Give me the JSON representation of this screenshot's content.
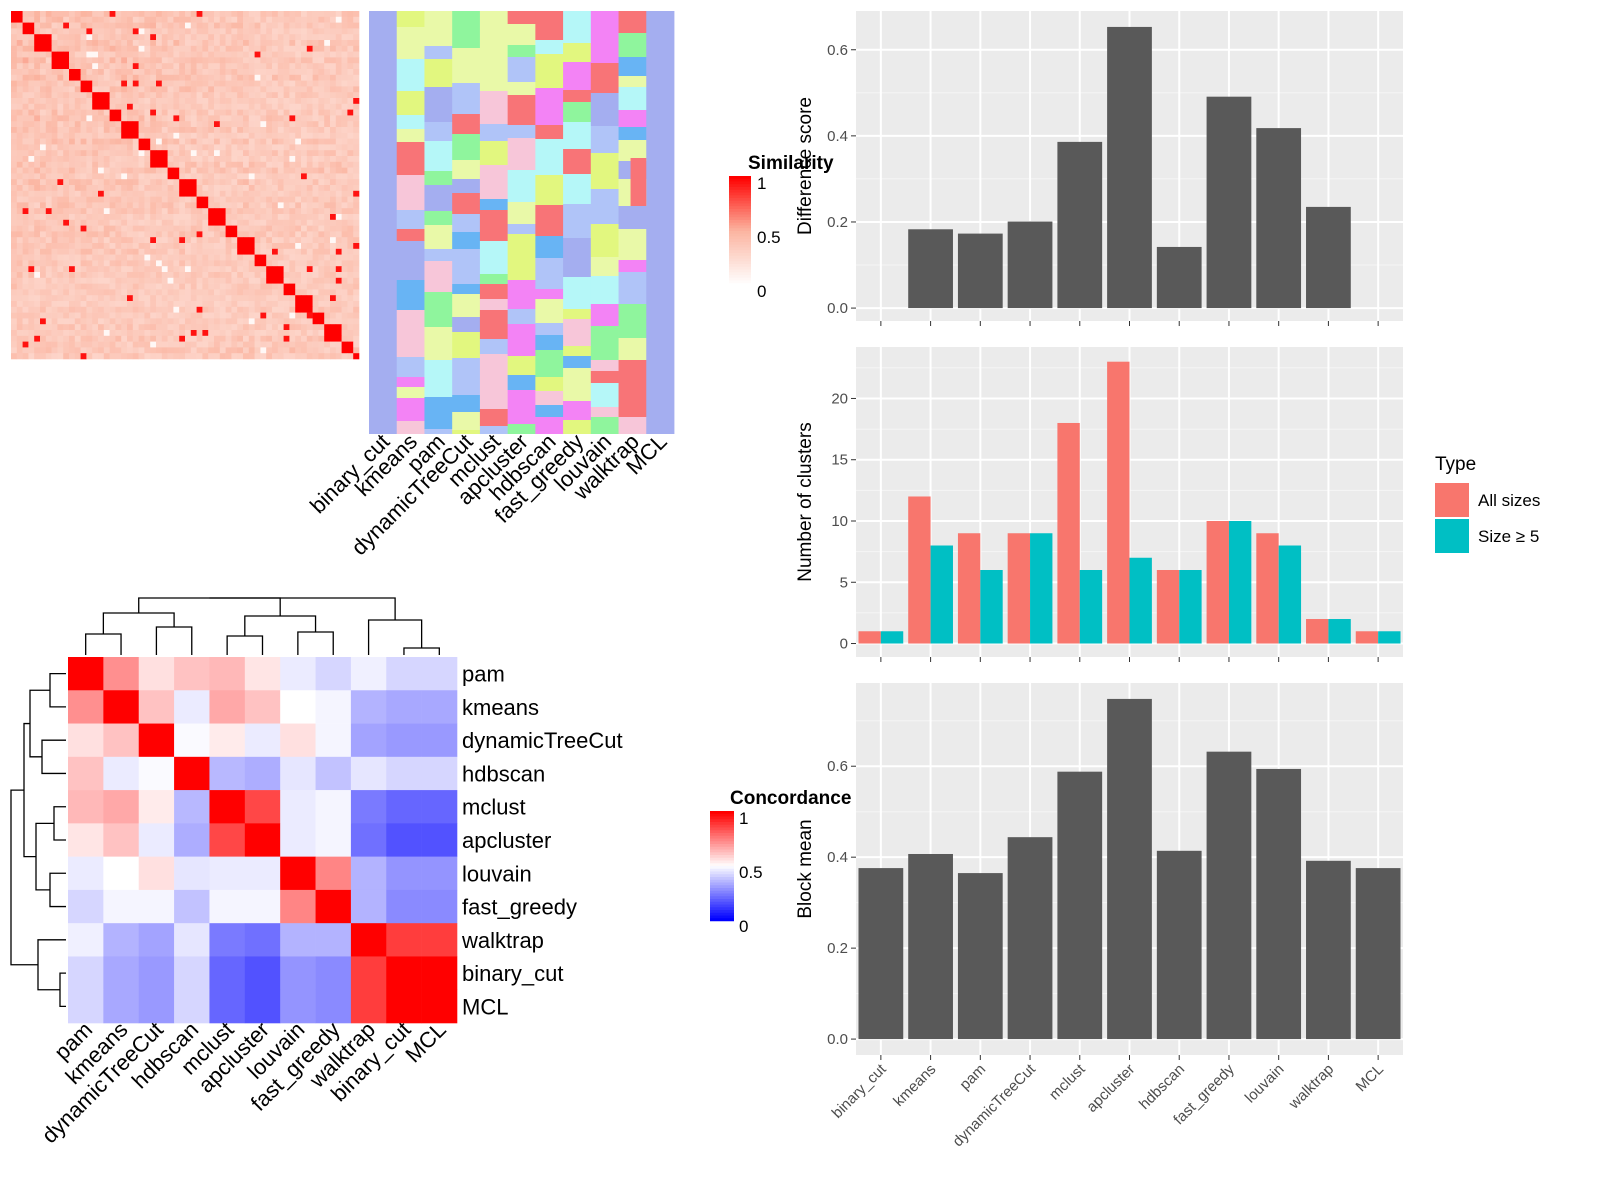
{
  "similarity_heatmap": {
    "legend_title": "Similarity",
    "legend_ticks": [
      "1",
      "0.5",
      "0"
    ],
    "method_labels": [
      "binary_cut",
      "kmeans",
      "pam",
      "dynamicTreeCut",
      "mclust",
      "apcluster",
      "hdbscan",
      "fast_greedy",
      "louvain",
      "walktrap",
      "MCL"
    ],
    "colors": {
      "high": "#ff0000",
      "mid": "#fbb4a0",
      "low": "#ffffff"
    }
  },
  "concordance_heatmap": {
    "legend_title": "Concordance",
    "legend_ticks": [
      "1",
      "0.5",
      "0"
    ],
    "colors": {
      "high": "#ff0000",
      "mid": "#ffffff",
      "low": "#0000ff"
    },
    "labels": [
      "pam",
      "kmeans",
      "dynamicTreeCut",
      "hdbscan",
      "mclust",
      "apcluster",
      "louvain",
      "fast_greedy",
      "walktrap",
      "binary_cut",
      "MCL"
    ],
    "matrix": [
      [
        1.0,
        0.72,
        0.56,
        0.62,
        0.64,
        0.55,
        0.46,
        0.42,
        0.47,
        0.42,
        0.42
      ],
      [
        0.72,
        1.0,
        0.62,
        0.46,
        0.67,
        0.62,
        0.5,
        0.48,
        0.35,
        0.33,
        0.33
      ],
      [
        0.56,
        0.62,
        1.0,
        0.49,
        0.54,
        0.46,
        0.56,
        0.48,
        0.32,
        0.3,
        0.3
      ],
      [
        0.62,
        0.46,
        0.49,
        1.0,
        0.36,
        0.34,
        0.45,
        0.38,
        0.45,
        0.42,
        0.42
      ],
      [
        0.64,
        0.67,
        0.54,
        0.36,
        1.0,
        0.86,
        0.46,
        0.48,
        0.24,
        0.2,
        0.2
      ],
      [
        0.55,
        0.62,
        0.46,
        0.34,
        0.86,
        1.0,
        0.46,
        0.48,
        0.22,
        0.16,
        0.16
      ],
      [
        0.46,
        0.5,
        0.56,
        0.45,
        0.46,
        0.46,
        1.0,
        0.74,
        0.35,
        0.29,
        0.29
      ],
      [
        0.42,
        0.48,
        0.48,
        0.38,
        0.48,
        0.48,
        0.74,
        1.0,
        0.35,
        0.27,
        0.27
      ],
      [
        0.47,
        0.35,
        0.32,
        0.45,
        0.24,
        0.22,
        0.35,
        0.35,
        1.0,
        0.88,
        0.88
      ],
      [
        0.42,
        0.33,
        0.3,
        0.42,
        0.2,
        0.16,
        0.29,
        0.27,
        0.88,
        1.0,
        1.0
      ],
      [
        0.42,
        0.33,
        0.3,
        0.42,
        0.2,
        0.16,
        0.29,
        0.27,
        0.88,
        1.0,
        1.0
      ]
    ]
  },
  "chart_data": [
    {
      "type": "bar",
      "categories": [
        "binary_cut",
        "kmeans",
        "pam",
        "dynamicTreeCut",
        "mclust",
        "apcluster",
        "hdbscan",
        "fast_greedy",
        "louvain",
        "walktrap",
        "MCL"
      ],
      "values": [
        0,
        0.183,
        0.173,
        0.201,
        0.386,
        0.653,
        0.142,
        0.491,
        0.418,
        0.235,
        0
      ],
      "ylabel": "Difference score",
      "ylim": [
        -0.03,
        0.69
      ],
      "yticks": [
        "0.0",
        "0.2",
        "0.4",
        "0.6"
      ],
      "ytick_values": [
        0,
        0.2,
        0.4,
        0.6
      ],
      "grid": true
    },
    {
      "type": "bar",
      "categories": [
        "binary_cut",
        "kmeans",
        "pam",
        "dynamicTreeCut",
        "mclust",
        "apcluster",
        "hdbscan",
        "fast_greedy",
        "louvain",
        "walktrap",
        "MCL"
      ],
      "series": [
        {
          "name": "All sizes",
          "color": "#f8766d",
          "values": [
            1,
            12,
            9,
            9,
            18,
            23,
            6,
            10,
            9,
            2,
            1
          ]
        },
        {
          "name": "Size ≥ 5",
          "color": "#00bfc4",
          "values": [
            1,
            8,
            6,
            9,
            6,
            7,
            6,
            10,
            8,
            2,
            1
          ]
        }
      ],
      "ylabel": "Number of clusters",
      "ylim": [
        -1.1,
        24.2
      ],
      "yticks": [
        "0",
        "5",
        "10",
        "15",
        "20"
      ],
      "ytick_values": [
        0,
        5,
        10,
        15,
        20
      ],
      "legend_title": "Type",
      "legend_position": "right",
      "grid": true
    },
    {
      "type": "bar",
      "categories": [
        "binary_cut",
        "kmeans",
        "pam",
        "dynamicTreeCut",
        "mclust",
        "apcluster",
        "hdbscan",
        "fast_greedy",
        "louvain",
        "walktrap",
        "MCL"
      ],
      "values": [
        0.376,
        0.407,
        0.365,
        0.444,
        0.588,
        0.748,
        0.414,
        0.632,
        0.594,
        0.392,
        0.376
      ],
      "ylabel": "Block mean",
      "ylim": [
        -0.035,
        0.783
      ],
      "yticks": [
        "0.0",
        "0.2",
        "0.4",
        "0.6"
      ],
      "ytick_values": [
        0,
        0.2,
        0.4,
        0.6
      ],
      "grid": true
    }
  ]
}
